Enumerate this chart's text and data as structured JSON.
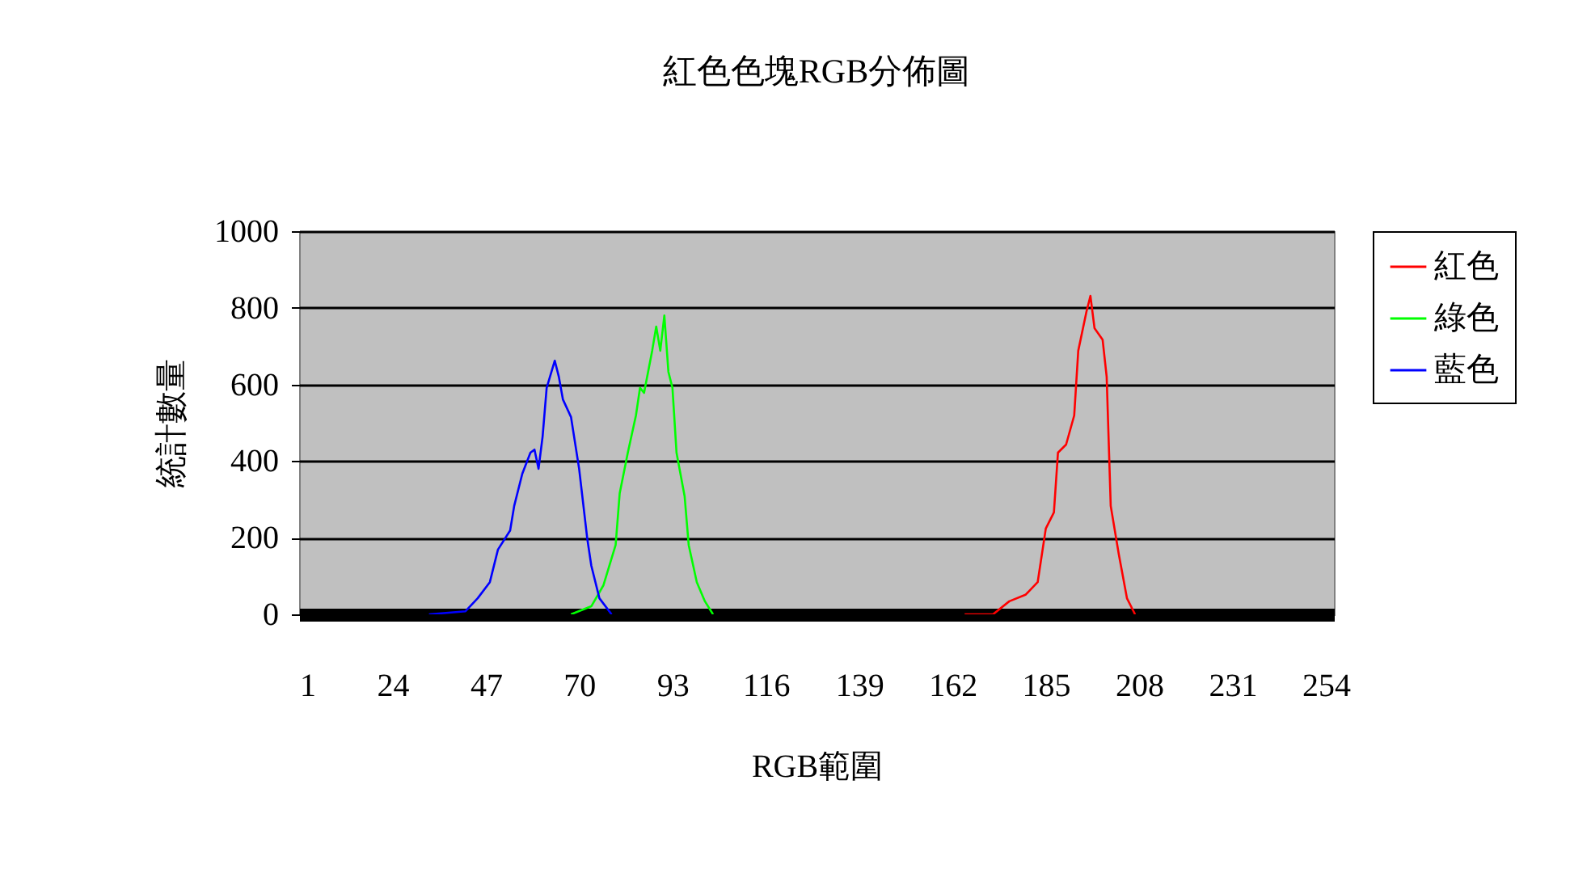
{
  "chart_data": {
    "type": "line",
    "title": "紅色色塊RGB分佈圖",
    "xlabel": "RGB範圍",
    "ylabel": "統計數量",
    "xlim": [
      1,
      256
    ],
    "xticks": [
      1,
      24,
      47,
      70,
      93,
      116,
      139,
      162,
      185,
      208,
      231,
      254
    ],
    "ylim": [
      0,
      1000
    ],
    "yticks": [
      0,
      200,
      400,
      600,
      800,
      1000
    ],
    "grid": "y",
    "legend": "right",
    "marker": "none",
    "series": [
      {
        "name": "紅色",
        "color": "#ff0000",
        "x": [
          165,
          172,
          176,
          180,
          183,
          185,
          187,
          188,
          190,
          192,
          193,
          195,
          196,
          197,
          199,
          200,
          201,
          203,
          205,
          207
        ],
        "values": [
          0,
          0,
          34,
          51,
          84,
          224,
          266,
          422,
          443,
          519,
          688,
          789,
          831,
          747,
          717,
          620,
          283,
          156,
          42,
          0
        ]
      },
      {
        "name": "綠色",
        "color": "#00ff00",
        "x": [
          68,
          73,
          76,
          79,
          80,
          82,
          84,
          85,
          86,
          88,
          89,
          90,
          91,
          92,
          93,
          94,
          96,
          97,
          99,
          101,
          103
        ],
        "values": [
          0,
          21,
          76,
          181,
          316,
          422,
          519,
          591,
          578,
          688,
          751,
          688,
          780,
          633,
          591,
          422,
          308,
          181,
          84,
          34,
          0
        ]
      },
      {
        "name": "藍色",
        "color": "#0000ff",
        "x": [
          33,
          42,
          45,
          48,
          50,
          53,
          54,
          56,
          58,
          59,
          60,
          61,
          62,
          64,
          65,
          66,
          68,
          70,
          72,
          73,
          75,
          78
        ],
        "values": [
          0,
          8,
          42,
          84,
          169,
          219,
          283,
          367,
          422,
          430,
          380,
          464,
          591,
          662,
          620,
          561,
          515,
          380,
          198,
          127,
          42,
          0
        ]
      }
    ]
  }
}
